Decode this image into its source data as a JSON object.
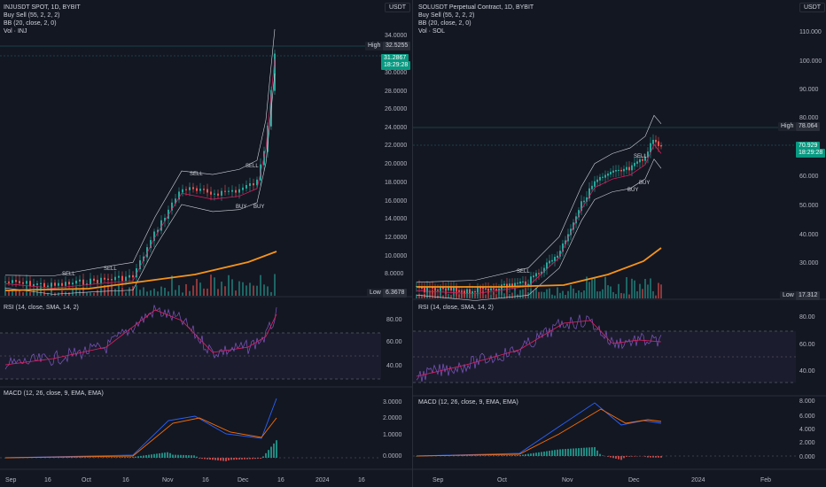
{
  "colors": {
    "background": "#131722",
    "up": "#26a69a",
    "down": "#ef5350",
    "ma_orange": "#f7931a",
    "rsi_line": "#7e57c2",
    "rsi_ma": "#e91e63",
    "macd_line": "#2962ff",
    "signal_line": "#ff6d00",
    "price_tag": "#089981"
  },
  "left": {
    "title": "INJUSDT SPOT, 1D, BYBIT",
    "ind1": "Buy Sell (55, 2, 2, 2)",
    "ind2": "BB (20, close, 2, 0)",
    "ind3": "Vol · INJ",
    "unit": "USDT",
    "price_ticks": [
      "34.0000",
      "30.0000",
      "28.0000",
      "26.0000",
      "24.0000",
      "22.0000",
      "20.0000",
      "18.0000",
      "16.0000",
      "14.0000",
      "12.0000",
      "10.0000",
      "8.0000"
    ],
    "high_label": "High",
    "high_value": "32.5255",
    "last_price": "31.2867",
    "countdown": "18:29:28",
    "low_label": "Low",
    "low_value": "6.3678",
    "rsi_title": "RSI (14, close, SMA, 14, 2)",
    "rsi_ticks": [
      "80.00",
      "60.00",
      "40.00"
    ],
    "macd_title": "MACD (12, 26, close, 9, EMA, EMA)",
    "macd_ticks": [
      "3.0000",
      "2.0000",
      "1.0000",
      "0.0000"
    ],
    "x_ticks": [
      "Sep",
      "16",
      "Oct",
      "16",
      "Nov",
      "16",
      "Dec",
      "16",
      "2024",
      "16"
    ],
    "signals": [
      "SELL",
      "SELL",
      "SELL",
      "SELL",
      "BUY",
      "BUY"
    ]
  },
  "right": {
    "title": "SOLUSDT Perpetual Contract, 1D, BYBIT",
    "ind1": "Buy Sell (55, 2, 2, 2)",
    "ind2": "BB (20, close, 2, 0)",
    "ind3": "Vol · SOL",
    "unit": "USDT",
    "price_ticks": [
      "110.000",
      "100.000",
      "90.000",
      "80.000",
      "60.000",
      "50.000",
      "40.000",
      "30.000"
    ],
    "high_label": "High",
    "high_value": "78.064",
    "last_price": "70.929",
    "countdown": "18:29:28",
    "low_label": "Low",
    "low_value": "17.312",
    "rsi_title": "RSI (14, close, SMA, 14, 2)",
    "rsi_ticks": [
      "80.00",
      "60.00",
      "40.00"
    ],
    "macd_title": "MACD (12, 26, close, 9, EMA, EMA)",
    "macd_ticks": [
      "8.000",
      "6.000",
      "4.000",
      "2.000",
      "0.000"
    ],
    "x_ticks": [
      "Sep",
      "Oct",
      "Nov",
      "Dec",
      "2024",
      "Feb"
    ],
    "signals": [
      "SELL",
      "SELL",
      "BUY",
      "BUY"
    ]
  }
}
